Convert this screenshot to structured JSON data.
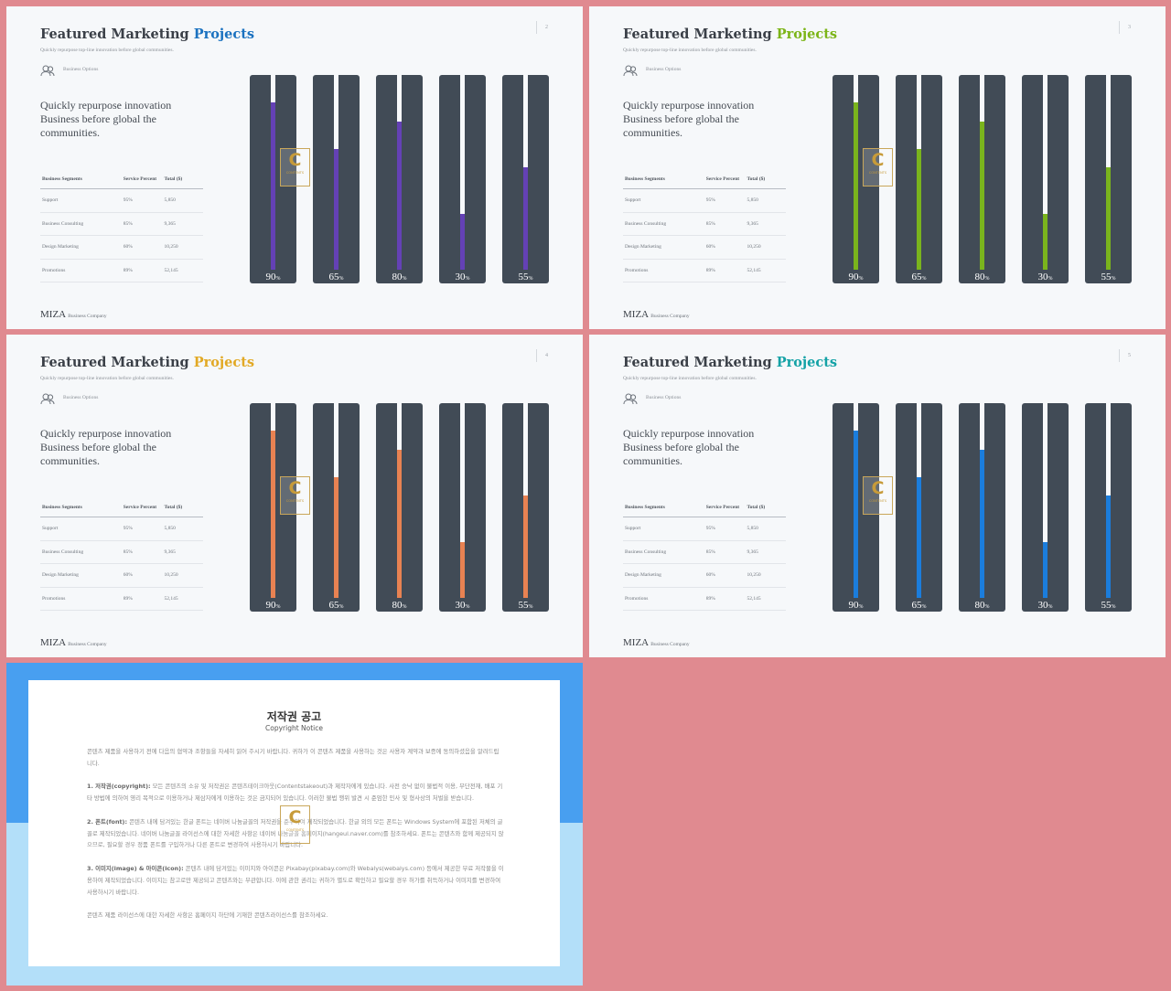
{
  "slides": [
    {
      "title_main": "Featured Marketing ",
      "title_accent": "Projects",
      "subtitle": "Quickly repurpose top-line innovation before global communities.",
      "page": "2",
      "option_label": "Business Options",
      "option_icon": "people-icon",
      "headline": "Quickly repurpose innovation Business before global the communities.",
      "table": {
        "headers": [
          "Business Segments",
          "Service Percent",
          "Total ($)"
        ],
        "rows": [
          [
            "Support",
            "95%",
            "5,850"
          ],
          [
            "Business Consulting",
            "85%",
            "9,365"
          ],
          [
            "Design Marketing",
            "60%",
            "10,250"
          ],
          [
            "Promotions",
            "89%",
            "52,145"
          ]
        ]
      },
      "accent_color": "#1b72c0",
      "fill_color": "#6441b5",
      "brand": "MIZA",
      "brand_sub": "Business Company"
    },
    {
      "title_main": "Featured Marketing ",
      "title_accent": "Projects",
      "subtitle": "Quickly repurpose top-line innovation before global communities.",
      "page": "3",
      "option_label": "Business Options",
      "option_icon": "people-icon",
      "headline": "Quickly repurpose innovation Business before global the communities.",
      "table": {
        "headers": [
          "Business Segments",
          "Service Percent",
          "Total ($)"
        ],
        "rows": [
          [
            "Support",
            "95%",
            "5,850"
          ],
          [
            "Business Consulting",
            "85%",
            "9,365"
          ],
          [
            "Design Marketing",
            "60%",
            "10,250"
          ],
          [
            "Promotions",
            "89%",
            "52,145"
          ]
        ]
      },
      "accent_color": "#7cb518",
      "fill_color": "#7ab41d",
      "brand": "MIZA",
      "brand_sub": "Business Company"
    },
    {
      "title_main": "Featured Marketing ",
      "title_accent": "Projects",
      "subtitle": "Quickly repurpose top-line innovation before global communities.",
      "page": "4",
      "option_label": "Business Options",
      "option_icon": "people-icon",
      "headline": "Quickly repurpose innovation Business before global the communities.",
      "table": {
        "headers": [
          "Business Segments",
          "Service Percent",
          "Total ($)"
        ],
        "rows": [
          [
            "Support",
            "95%",
            "5,850"
          ],
          [
            "Business Consulting",
            "85%",
            "9,365"
          ],
          [
            "Design Marketing",
            "60%",
            "10,250"
          ],
          [
            "Promotions",
            "89%",
            "52,145"
          ]
        ]
      },
      "accent_color": "#e2a925",
      "fill_color": "#e88252",
      "brand": "MIZA",
      "brand_sub": "Business Company"
    },
    {
      "title_main": "Featured Marketing ",
      "title_accent": "Projects",
      "subtitle": "Quickly repurpose top-line innovation before global communities.",
      "page": "5",
      "option_label": "Business Options",
      "option_icon": "people-icon",
      "headline": "Quickly repurpose innovation Business before global the communities.",
      "table": {
        "headers": [
          "Business Segments",
          "Service Percent",
          "Total ($)"
        ],
        "rows": [
          [
            "Support",
            "95%",
            "5,850"
          ],
          [
            "Business Consulting",
            "85%",
            "9,365"
          ],
          [
            "Design Marketing",
            "60%",
            "10,250"
          ],
          [
            "Promotions",
            "89%",
            "52,145"
          ]
        ]
      },
      "accent_color": "#14a2a6",
      "fill_color": "#1b7ddc",
      "brand": "MIZA",
      "brand_sub": "Business Company"
    }
  ],
  "chart_data": {
    "type": "bar",
    "values": [
      90,
      65,
      80,
      30,
      55
    ],
    "labels": [
      "90",
      "65",
      "80",
      "30",
      "55"
    ],
    "unit": "%",
    "ylim": [
      0,
      100
    ]
  },
  "watermark": {
    "letter": "C",
    "text": "CONTENTS"
  },
  "copyright": {
    "title": "저작권 공고",
    "subtitle": "Copyright Notice",
    "intro": "콘텐츠 제품을 사용하기 전에 다음의 협약과 조항들을 자세히 읽어 주시기 바랍니다. 귀하가 이 콘텐츠 제품을 사용하는 것은 사용자 계약과 보증에 동의하셨음을 알려드립니다.",
    "s1_head": "1. 저작권(copyright):",
    "s1_body": " 모든 콘텐츠의 소유 및 저작권은 콘텐츠테이크아웃(Contentstakeout)과 제작자에게 있습니다. 사전 승낙 없이 불법적 이용, 무단전재, 배포 기타 방법에 의하여 영리 목적으로 이용하거나 제삼자에게 이용하는 것은 금지되어 있습니다. 이러한 불법 행위 발견 시 준엄한 민사 및 형사상의 처벌을 받습니다.",
    "s2_head": "2. 폰트(font):",
    "s2_body": " 콘텐츠 내에 담겨있는 한글 폰트는 네이버 나눔글꼴의 저작권을 준수하여 제작되었습니다. 한글 외의 모든 폰트는 Windows System에 포함된 저체의 글꼴로 제작되었습니다. 네이버 나눔글꼴 라이선스에 대한 자세한 사항은 네이버 나눔글꼴 홈페이지(hangeul.naver.com)를 참조하세요. 폰트는 콘텐츠와 함께 제공되지 않으므로, 필요할 경우 정품 폰트를 구입하거나 다른 폰트로 변경하여 사용하시기 바랍니다.",
    "s3_head": "3. 이미지(image) & 아이콘(icon):",
    "s3_body": " 콘텐츠 내에 담겨있는 이미지와 아이콘은 Pixabay(pixabay.com)와 Webalys(webalys.com) 등에서 제공한 무료 저작물을 이용하여 제작되었습니다. 이미지는 참고로만 제공되고 콘텐츠와는 무관합니다. 이에 관한 권리는 귀하가 별도로 확인하고 필요할 경우 허가를 취득하거나 이미지를 변경하여 사용하시기 바랍니다.",
    "outro": "콘텐츠 제품 라이선스에 대한 자세한 사항은 홈페이지 하단에 기재한 콘텐츠라이선스를 참조하세요."
  }
}
